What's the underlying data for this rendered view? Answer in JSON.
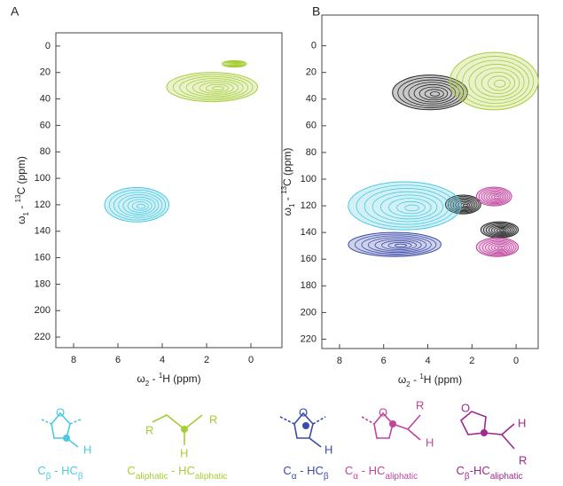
{
  "chart_data": [
    {
      "type": "contour",
      "panel": "A",
      "xlabel": [
        {
          "text": "ω"
        },
        {
          "text": "2",
          "sub": true
        },
        {
          "text": " - "
        },
        {
          "text": "1",
          "sup": true
        },
        {
          "text": "H  (ppm)"
        }
      ],
      "ylabel": [
        {
          "text": "ω"
        },
        {
          "text": "1",
          "sub": true
        },
        {
          "text": " - "
        },
        {
          "text": "13",
          "sup": true
        },
        {
          "text": "C  (ppm)"
        }
      ],
      "xlim": [
        8.8,
        -1.4
      ],
      "xticks": [
        8,
        6,
        4,
        2,
        0
      ],
      "ylim": [
        -10,
        228
      ],
      "yticks": [
        0,
        20,
        40,
        60,
        80,
        100,
        120,
        140,
        160,
        180,
        200,
        220
      ],
      "series": [
        {
          "color": "#a6cd36",
          "x": [
            3.8,
            -0.3
          ],
          "y": [
            20,
            42
          ]
        },
        {
          "color": "#a6cd36",
          "x": [
            1.3,
            0.2
          ],
          "y": [
            11,
            16
          ]
        },
        {
          "color": "#4cc9e0",
          "x": [
            6.6,
            3.7
          ],
          "y": [
            107,
            133
          ]
        }
      ]
    },
    {
      "type": "contour",
      "panel": "B",
      "xlabel": [
        {
          "text": "ω"
        },
        {
          "text": "2",
          "sub": true
        },
        {
          "text": " - "
        },
        {
          "text": "1",
          "sup": true
        },
        {
          "text": "H  (ppm)"
        }
      ],
      "ylabel": [
        {
          "text": "ω"
        },
        {
          "text": "1",
          "sub": true
        },
        {
          "text": " - "
        },
        {
          "text": "13",
          "sup": true
        },
        {
          "text": "C  (ppm)"
        }
      ],
      "xlim": [
        8.8,
        -1.0
      ],
      "xticks": [
        8,
        6,
        4,
        2,
        0
      ],
      "ylim": [
        -23,
        227
      ],
      "yticks": [
        0,
        20,
        40,
        60,
        80,
        100,
        120,
        140,
        160,
        180,
        200,
        220
      ],
      "series": [
        {
          "color": "#222222",
          "x": [
            5.6,
            2.2
          ],
          "y": [
            22,
            48
          ]
        },
        {
          "color": "#a6cd36",
          "x": [
            3.0,
            -1.0
          ],
          "y": [
            5,
            48
          ]
        },
        {
          "color": "#222222",
          "x": [
            3.2,
            1.6
          ],
          "y": [
            112,
            126
          ]
        },
        {
          "color": "#4cc9e0",
          "x": [
            7.6,
            2.5
          ],
          "y": [
            102,
            138
          ]
        },
        {
          "color": "#c0449e",
          "x": [
            1.8,
            0.2
          ],
          "y": [
            106,
            120
          ]
        },
        {
          "color": "#222222",
          "x": [
            1.6,
            -0.1
          ],
          "y": [
            132,
            144
          ]
        },
        {
          "color": "#3b4aa8",
          "x": [
            7.6,
            3.4
          ],
          "y": [
            140,
            158
          ]
        },
        {
          "color": "#c0449e",
          "x": [
            1.8,
            -0.1
          ],
          "y": [
            144,
            158
          ]
        }
      ]
    }
  ],
  "structures": [
    {
      "atoms": [
        "O",
        "H"
      ],
      "caption": {
        "a": "C",
        "as": "β",
        "b": " - HC",
        "bs": "β"
      },
      "color": "#4cc9e0"
    },
    {
      "atoms": [
        "R",
        "R",
        "H"
      ],
      "caption": {
        "a": "C",
        "as": "aliphatic",
        "b": " - HC",
        "bs": "aliphatic"
      },
      "color": "#a6cd36"
    },
    {
      "atoms": [
        "O",
        "H"
      ],
      "caption": {
        "a": "C",
        "as": "α",
        "b": " - HC",
        "bs": "β"
      },
      "color": "#3b4aa8"
    },
    {
      "atoms": [
        "O",
        "R",
        "H"
      ],
      "caption": {
        "a": "C",
        "as": "α",
        "b": " - HC",
        "bs": "aliphatic"
      },
      "color": "#c0449e"
    },
    {
      "atoms": [
        "O",
        "H",
        "R"
      ],
      "caption": {
        "a": "C",
        "as": "β",
        "b": "-HC",
        "bs": "aliphatic"
      },
      "color": "#9c2a8f"
    }
  ]
}
